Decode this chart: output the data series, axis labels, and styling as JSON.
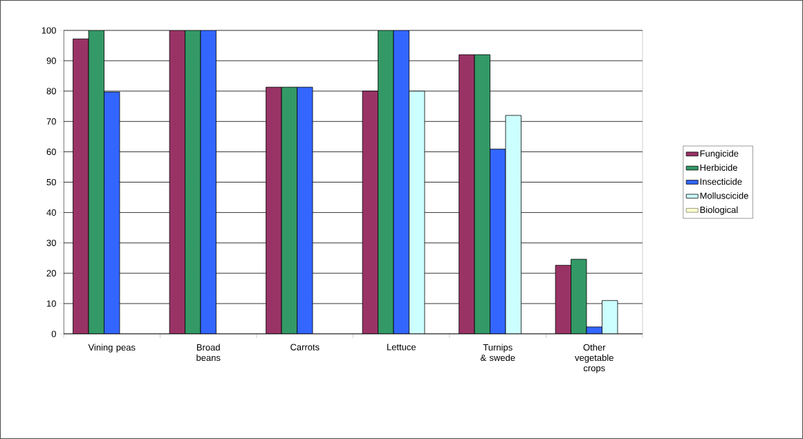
{
  "chart_data": {
    "type": "bar",
    "categories": [
      "Vining peas",
      "Broad beans",
      "Carrots",
      "Lettuce",
      "Turnips & swede",
      "Other vegetable crops"
    ],
    "series": [
      {
        "name": "Fungicide",
        "color": "#993366",
        "values": [
          97.2,
          100,
          81.3,
          80,
          92,
          22.6
        ]
      },
      {
        "name": "Herbicide",
        "color": "#339966",
        "values": [
          100,
          100,
          81.3,
          100,
          92,
          24.6
        ]
      },
      {
        "name": "Insecticide",
        "color": "#3366ff",
        "values": [
          79.7,
          100,
          81.3,
          100,
          60.9,
          2.3
        ]
      },
      {
        "name": "Molluscicide",
        "color": "#ccffff",
        "values": [
          null,
          null,
          null,
          80,
          72,
          11
        ]
      },
      {
        "name": "Biological",
        "color": "#ffffcc",
        "values": [
          null,
          null,
          null,
          null,
          null,
          null
        ]
      }
    ],
    "ylim": [
      0,
      100
    ],
    "yticks": [
      0,
      10,
      20,
      30,
      40,
      50,
      60,
      70,
      80,
      90,
      100
    ],
    "grid": "y",
    "legend": "right"
  }
}
